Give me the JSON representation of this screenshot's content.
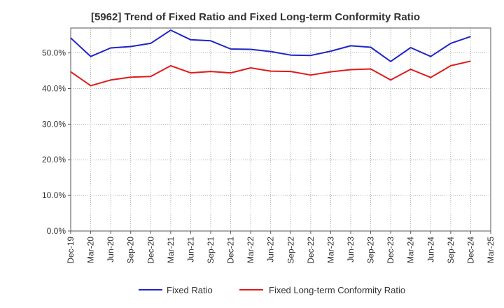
{
  "chart_data": {
    "type": "line",
    "title": "[5962]  Trend of Fixed Ratio and Fixed Long-term Conformity Ratio",
    "xlabel": "",
    "ylabel": "",
    "categories": [
      "Dec-19",
      "Mar-20",
      "Jun-20",
      "Sep-20",
      "Dec-20",
      "Mar-21",
      "Jun-21",
      "Sep-21",
      "Dec-21",
      "Mar-22",
      "Jun-22",
      "Sep-22",
      "Dec-22",
      "Mar-23",
      "Jun-23",
      "Sep-23",
      "Dec-23",
      "Mar-24",
      "Jun-24",
      "Sep-24",
      "Dec-24",
      "Mar-25"
    ],
    "y_ticks": [
      "0.0%",
      "10.0%",
      "20.0%",
      "30.0%",
      "40.0%",
      "50.0%"
    ],
    "ylim": [
      0,
      57
    ],
    "grid": true,
    "legend_position": "bottom",
    "series": [
      {
        "name": "Fixed Ratio",
        "color": "#1f24c9",
        "values": [
          54.2,
          49.0,
          51.4,
          51.8,
          52.7,
          56.4,
          53.7,
          53.4,
          51.1,
          51.0,
          50.4,
          49.4,
          49.3,
          50.5,
          52.0,
          51.6,
          47.6,
          51.5,
          49.0,
          52.7,
          54.6,
          null
        ]
      },
      {
        "name": "Fixed Long-term Conformity Ratio",
        "color": "#e01a1a",
        "values": [
          44.7,
          40.8,
          42.4,
          43.2,
          43.4,
          46.4,
          44.4,
          44.8,
          44.4,
          45.8,
          44.9,
          44.8,
          43.8,
          44.7,
          45.3,
          45.5,
          42.4,
          45.4,
          43.1,
          46.4,
          47.7,
          null
        ]
      }
    ]
  }
}
